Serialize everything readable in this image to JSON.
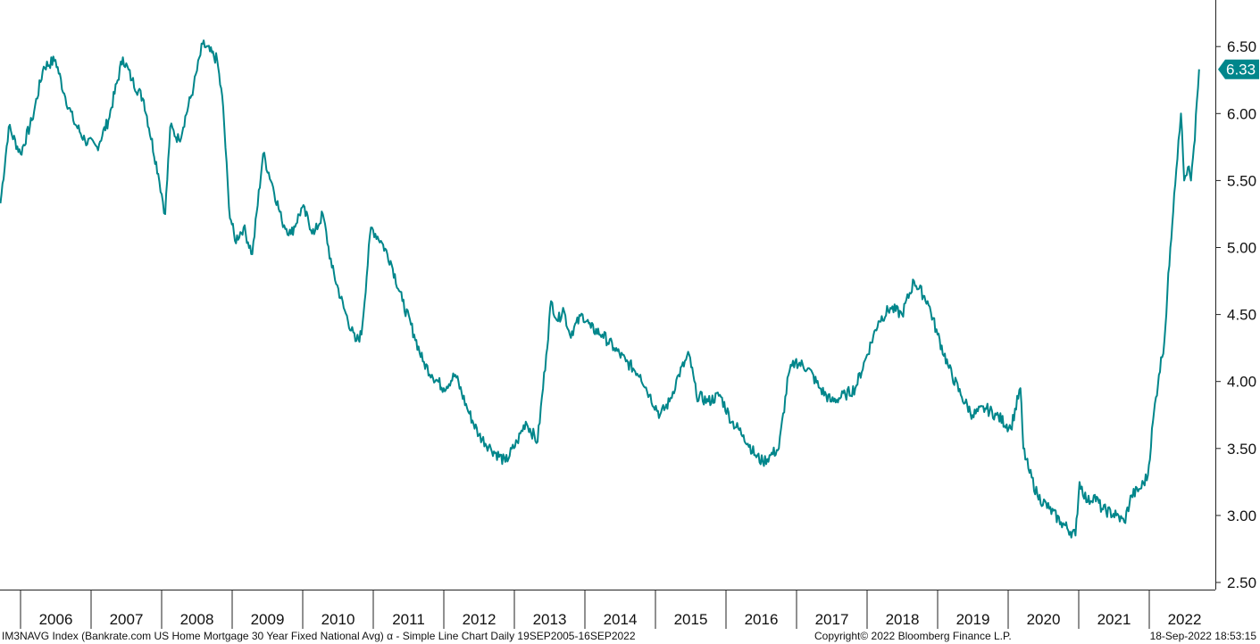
{
  "chart_data": {
    "type": "line",
    "title": "",
    "xlabel": "",
    "ylabel": "",
    "x_tick_labels": [
      "2006",
      "2007",
      "2008",
      "2009",
      "2010",
      "2011",
      "2012",
      "2013",
      "2014",
      "2015",
      "2016",
      "2017",
      "2018",
      "2019",
      "2020",
      "2021",
      "2022"
    ],
    "y_tick_labels": [
      "2.50",
      "3.00",
      "3.50",
      "4.00",
      "4.50",
      "5.00",
      "5.50",
      "6.00",
      "6.50"
    ],
    "ylim": [
      2.5,
      6.5
    ],
    "xlim": [
      "2005-09-19",
      "2022-09-16"
    ],
    "grid": false,
    "y_axis_side": "right",
    "last_value_label": "6.33",
    "color": "#00868b",
    "series": [
      {
        "x": [
          "2005-09-19",
          "2005-11-01",
          "2006-01-01",
          "2006-03-01",
          "2006-05-01",
          "2006-07-01",
          "2006-08-15",
          "2006-10-01",
          "2006-12-01",
          "2007-02-01",
          "2007-04-01",
          "2007-06-15",
          "2007-08-01",
          "2007-10-01",
          "2007-12-15",
          "2008-01-20",
          "2008-02-15",
          "2008-04-01",
          "2008-06-15",
          "2008-08-01",
          "2008-10-15",
          "2008-11-15",
          "2008-12-15",
          "2009-01-15",
          "2009-03-01",
          "2009-04-15",
          "2009-06-10",
          "2009-08-01",
          "2009-09-15",
          "2009-11-01",
          "2009-12-30",
          "2010-03-01",
          "2010-04-15",
          "2010-06-01",
          "2010-08-01",
          "2010-10-01",
          "2010-11-01",
          "2010-12-20",
          "2011-02-10",
          "2011-04-01",
          "2011-06-01",
          "2011-08-01",
          "2011-09-15",
          "2011-11-01",
          "2012-01-01",
          "2012-03-01",
          "2012-05-01",
          "2012-07-01",
          "2012-09-01",
          "2012-11-15",
          "2013-01-15",
          "2013-03-01",
          "2013-05-01",
          "2013-06-15",
          "2013-07-10",
          "2013-08-15",
          "2013-09-10",
          "2013-10-15",
          "2013-12-20",
          "2014-02-01",
          "2014-04-01",
          "2014-06-01",
          "2014-08-01",
          "2014-10-15",
          "2014-12-01",
          "2015-01-25",
          "2015-03-15",
          "2015-05-01",
          "2015-06-25",
          "2015-08-01",
          "2015-10-01",
          "2015-12-01",
          "2016-02-01",
          "2016-04-01",
          "2016-06-01",
          "2016-07-10",
          "2016-08-20",
          "2016-10-01",
          "2016-11-20",
          "2016-12-25",
          "2017-03-01",
          "2017-05-01",
          "2017-07-01",
          "2017-09-10",
          "2017-11-01",
          "2018-01-01",
          "2018-03-01",
          "2018-05-01",
          "2018-07-01",
          "2018-09-01",
          "2018-11-10",
          "2019-01-01",
          "2019-03-01",
          "2019-05-01",
          "2019-07-01",
          "2019-09-05",
          "2019-11-01",
          "2020-01-15",
          "2020-03-05",
          "2020-03-20",
          "2020-04-15",
          "2020-06-01",
          "2020-08-01",
          "2020-10-01",
          "2020-12-15",
          "2021-01-05",
          "2021-02-15",
          "2021-03-20",
          "2021-05-01",
          "2021-07-15",
          "2021-08-25",
          "2021-10-01",
          "2021-11-15",
          "2021-12-25",
          "2022-01-20",
          "2022-02-20",
          "2022-03-20",
          "2022-04-20",
          "2022-05-10",
          "2022-06-01",
          "2022-06-14",
          "2022-07-01",
          "2022-07-20",
          "2022-08-05",
          "2022-08-25",
          "2022-09-05",
          "2022-09-16"
        ],
        "y": [
          5.33,
          5.9,
          5.7,
          5.95,
          6.35,
          6.4,
          6.15,
          5.95,
          5.8,
          5.75,
          5.95,
          6.42,
          6.25,
          6.1,
          5.55,
          5.25,
          5.9,
          5.8,
          6.2,
          6.52,
          6.4,
          6.05,
          5.3,
          5.05,
          5.15,
          4.95,
          5.7,
          5.45,
          5.2,
          5.1,
          5.3,
          5.1,
          5.25,
          4.85,
          4.55,
          4.3,
          4.35,
          5.15,
          5.05,
          4.9,
          4.6,
          4.35,
          4.15,
          4.05,
          3.95,
          4.05,
          3.8,
          3.6,
          3.5,
          3.4,
          3.55,
          3.7,
          3.55,
          4.2,
          4.6,
          4.45,
          4.55,
          4.35,
          4.5,
          4.4,
          4.35,
          4.25,
          4.15,
          4.05,
          3.9,
          3.75,
          3.85,
          4.05,
          4.2,
          3.9,
          3.85,
          3.9,
          3.7,
          3.6,
          3.45,
          3.4,
          3.45,
          3.5,
          4.05,
          4.15,
          4.1,
          3.95,
          3.85,
          3.9,
          3.95,
          4.2,
          4.45,
          4.55,
          4.5,
          4.75,
          4.6,
          4.35,
          4.1,
          3.9,
          3.75,
          3.8,
          3.75,
          3.65,
          3.95,
          3.5,
          3.35,
          3.15,
          3.05,
          2.95,
          2.85,
          3.25,
          3.1,
          3.15,
          3.05,
          3.0,
          2.95,
          3.15,
          3.2,
          3.3,
          3.7,
          4.05,
          4.3,
          5.0,
          5.4,
          5.8,
          6.0,
          5.5,
          5.6,
          5.5,
          5.8,
          6.1,
          6.33
        ]
      }
    ]
  },
  "footer": {
    "left": "IM3NAVG Index (Bankrate.com US Home Mortgage 30 Year Fixed National Avg) α - Simple Line Chart  Daily 19SEP2005-16SEP2022",
    "center": "Copyright© 2022 Bloomberg Finance L.P.",
    "right": "18-Sep-2022 18:53:15"
  }
}
